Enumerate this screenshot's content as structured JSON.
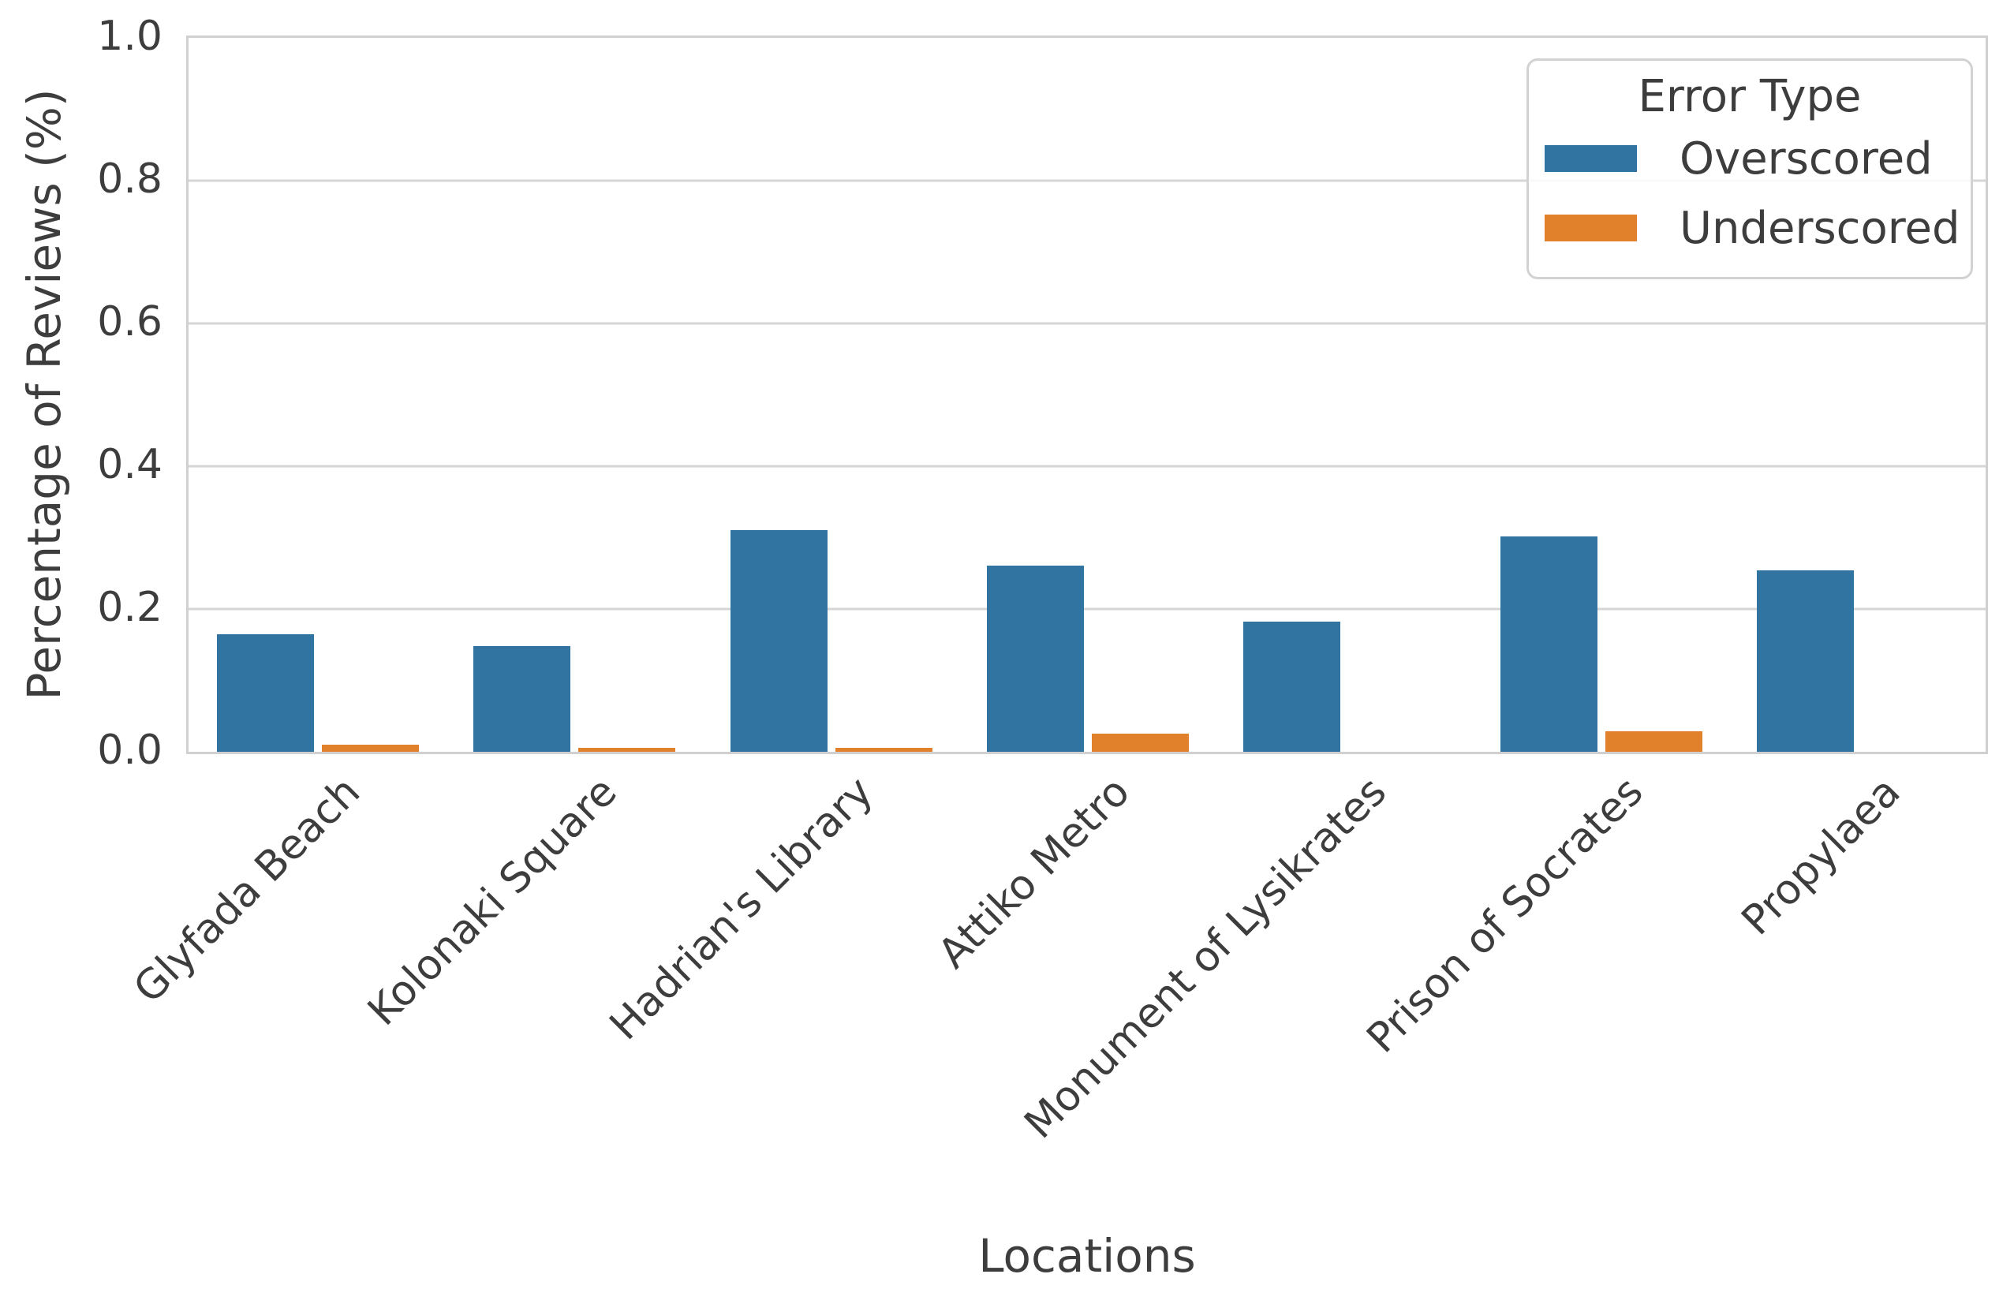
{
  "figure": {
    "background_color": "#ffffff",
    "text_color": "#3d3d3d",
    "grid_color": "#d6d6d6"
  },
  "chart_data": {
    "type": "bar",
    "title": "",
    "xlabel": "Locations",
    "ylabel": "Percentage of Reviews (%)",
    "categories": [
      "Glyfada Beach",
      "Kolonaki Square",
      "Hadrian's Library",
      "Attiko Metro",
      "Monument of Lysikrates",
      "Prison of Socrates",
      "Propylaea"
    ],
    "series": [
      {
        "name": "Overscored",
        "color": "#3274a1",
        "values": [
          0.165,
          0.148,
          0.311,
          0.261,
          0.182,
          0.302,
          0.254
        ]
      },
      {
        "name": "Underscored",
        "color": "#e1812c",
        "values": [
          0.01,
          0.005,
          0.006,
          0.025,
          0.0,
          0.029,
          0.0
        ]
      }
    ],
    "ylim": [
      0.0,
      1.0
    ],
    "yticks": [
      "0.0",
      "0.2",
      "0.4",
      "0.6",
      "0.8",
      "1.0"
    ],
    "ytick_values": [
      0.0,
      0.2,
      0.4,
      0.6,
      0.8,
      1.0
    ],
    "grid": "horizontal",
    "legend": {
      "title": "Error Type",
      "position": "upper right",
      "entries": [
        "Overscored",
        "Underscored"
      ]
    }
  }
}
